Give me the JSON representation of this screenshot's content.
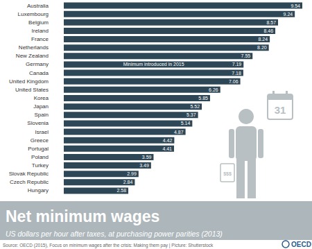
{
  "chart_data": {
    "type": "bar",
    "orientation": "horizontal",
    "title": "Net minimum wages",
    "subtitle": "US dollars per hour after taxes, at purchasing power parities (2013)",
    "source": "Source: OECD (2015), Focus on minimum wages after the crisis: Making them pay | Picture: Shutterstock",
    "logo": "OECD",
    "icon": {
      "calendar": "31",
      "price_tag": "$$$"
    },
    "categories": [
      "Australia",
      "Luxembourg",
      "Belgium",
      "Ireland",
      "France",
      "Netherlands",
      "New Zealand",
      "Germany",
      "Canada",
      "United Kingdom",
      "United States",
      "Korea",
      "Japan",
      "Spain",
      "Slovenia",
      "Israel",
      "Greece",
      "Portugal",
      "Poland",
      "Turkey",
      "Slovak Republic",
      "Czech Republic",
      "Hungary"
    ],
    "values": [
      9.54,
      9.24,
      8.57,
      8.46,
      8.24,
      8.2,
      7.55,
      7.19,
      7.18,
      7.06,
      6.26,
      5.85,
      5.52,
      5.37,
      5.14,
      4.87,
      4.42,
      4.41,
      3.59,
      3.49,
      2.99,
      2.84,
      2.58
    ],
    "value_labels": [
      "9.54",
      "9.24",
      "8.57",
      "8.46",
      "8.24",
      "8.20",
      "7.55",
      "7.19",
      "7.18",
      "7.06",
      "6.26",
      "5.85",
      "5.52",
      "5.37",
      "5.14",
      "4.87",
      "4.42",
      "4.41",
      "3.59",
      "3.49",
      "2.99",
      "2.84",
      "2.58"
    ],
    "annotations": [
      {
        "text": "Minimum introduced in 2015",
        "category": "Germany"
      }
    ],
    "color": "#2e4756",
    "xlim": [
      0,
      9.54
    ],
    "xticks": [],
    "grid": false,
    "data_labels": true,
    "tick_labels": "y"
  }
}
